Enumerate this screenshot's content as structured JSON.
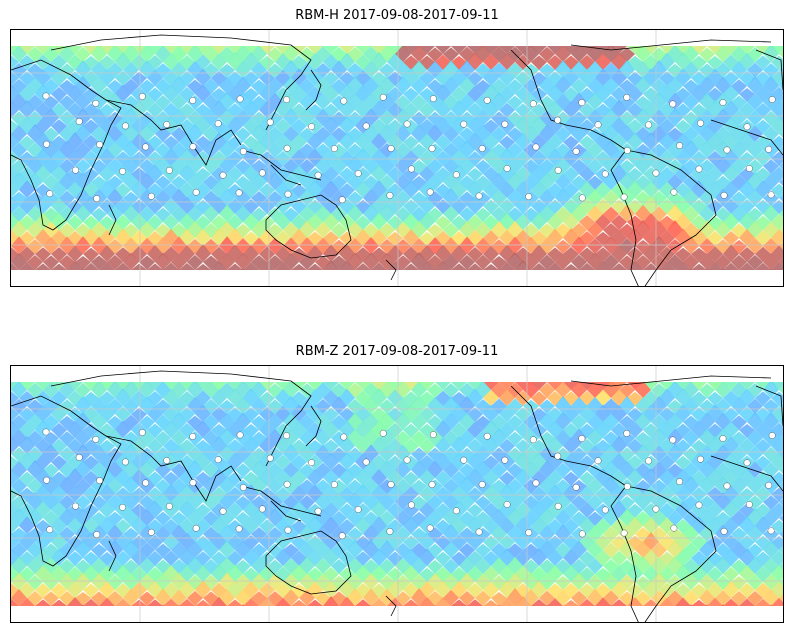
{
  "maps": [
    {
      "title": "RBM-H 2017-09-08-2017-09-11",
      "variant": "H"
    },
    {
      "title": "RBM-Z 2017-09-08-2017-09-11",
      "variant": "Z"
    }
  ],
  "colors": {
    "low": "#6a6cff",
    "mid_low": "#5ad0ff",
    "mid": "#7dffa0",
    "mid_high": "#ffe060",
    "high": "#ff5a4a",
    "max": "#b06060",
    "coast": "#000000",
    "grid": "#c8c8c8",
    "marker": "#ffffff"
  }
}
